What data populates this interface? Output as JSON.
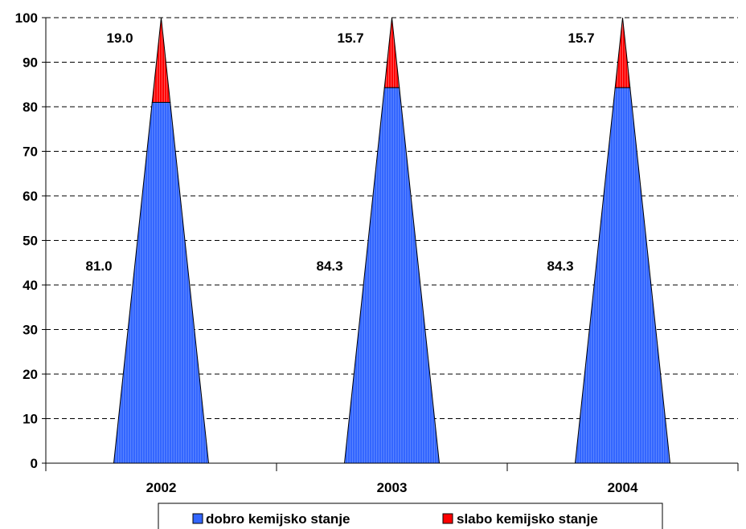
{
  "chart_data": {
    "type": "bar",
    "bar_shape": "cone",
    "stacked": true,
    "categories": [
      "2002",
      "2003",
      "2004"
    ],
    "series": [
      {
        "name": "dobro kemijsko stanje",
        "values": [
          81.0,
          84.3,
          84.3
        ],
        "labels": [
          "81.0",
          "84.3",
          "84.3"
        ],
        "color": "#3366ff"
      },
      {
        "name": "slabo kemijsko stanje",
        "values": [
          19.0,
          15.7,
          15.7
        ],
        "labels": [
          "19.0",
          "15.7",
          "15.7"
        ],
        "color": "#ff0000"
      }
    ],
    "ylim": [
      0,
      100
    ],
    "yticks": [
      0,
      10,
      20,
      30,
      40,
      50,
      60,
      70,
      80,
      90,
      100
    ],
    "grid": true,
    "legend_position": "bottom"
  }
}
